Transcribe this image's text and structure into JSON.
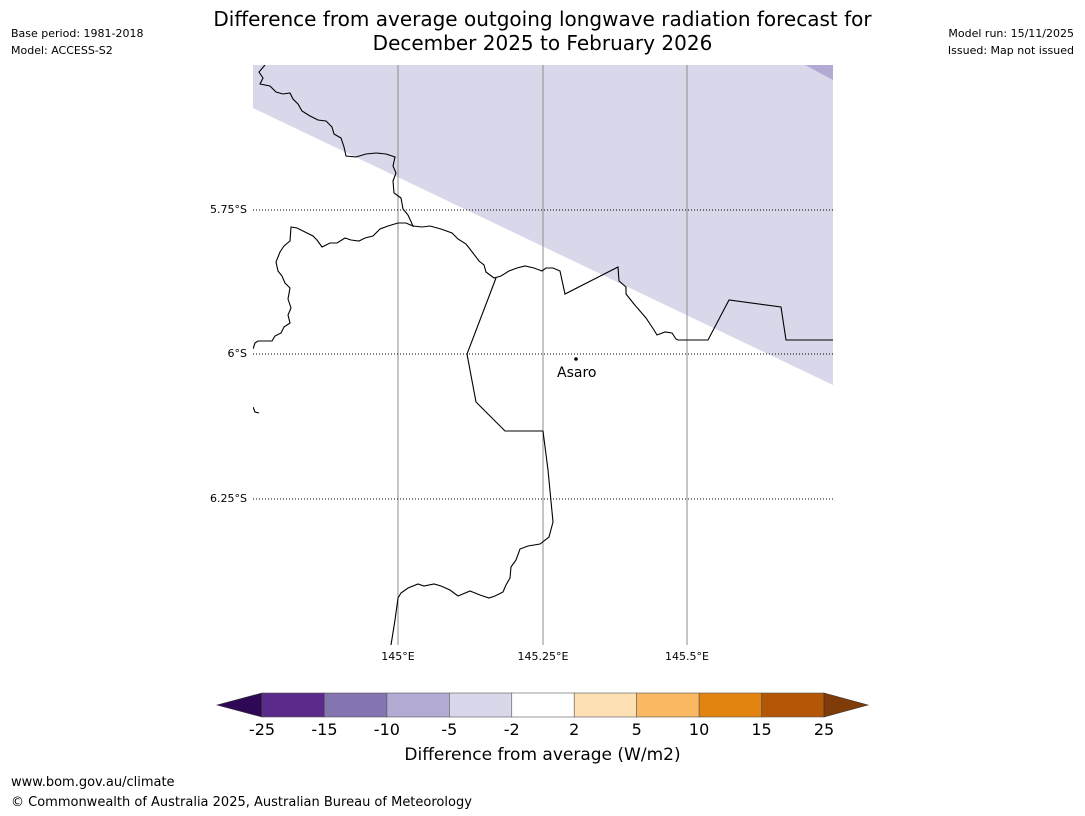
{
  "title": {
    "line1": "Difference from average outgoing longwave radiation forecast for",
    "line2": "December 2025 to February 2026"
  },
  "meta_left": {
    "base_period": "Base period: 1981-2018",
    "model": "Model: ACCESS-S2"
  },
  "meta_right": {
    "model_run": "Model run: 15/11/2025",
    "issued": "Issued: Map not issued"
  },
  "map": {
    "lat_ticks": [
      "5.75°S",
      "6°S",
      "6.25°S"
    ],
    "lon_ticks": [
      "145°E",
      "145.25°E",
      "145.5°E"
    ],
    "place": "Asaro",
    "shading_category": "-5 to -2",
    "shading_color": "#d8d8ea",
    "shading_color_dark": "#b2aad2"
  },
  "colorbar": {
    "title": "Difference from average (W/m2)",
    "labels": [
      "-25",
      "-15",
      "-10",
      "-5",
      "-2",
      "2",
      "5",
      "10",
      "15",
      "25"
    ],
    "colors": [
      "#5a2a8b",
      "#8474b0",
      "#b2aad2",
      "#d8d8ea",
      "#ffffff",
      "#fde0b4",
      "#fbb862",
      "#e2840f",
      "#b35706"
    ],
    "extend_low_color": "#2e0854",
    "extend_high_color": "#7f3b08"
  },
  "footer": {
    "url": "www.bom.gov.au/climate",
    "copyright": "© Commonwealth of Australia 2025, Australian Bureau of Meteorology"
  }
}
